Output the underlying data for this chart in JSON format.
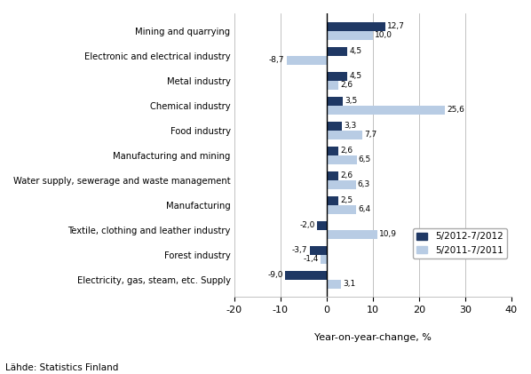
{
  "categories": [
    "Electricity, gas, steam, etc. Supply",
    "Forest industry",
    "Textile, clothing and leather industry",
    "Manufacturing",
    "Water supply, sewerage and waste management",
    "Manufacturing and mining",
    "Food industry",
    "Chemical industry",
    "Metal industry",
    "Electronic and electrical industry",
    "Mining and quarrying"
  ],
  "series_2012": [
    -9.0,
    -3.7,
    -2.0,
    2.5,
    2.6,
    2.6,
    3.3,
    3.5,
    4.5,
    4.5,
    12.7
  ],
  "series_2011": [
    3.1,
    -1.4,
    10.9,
    6.4,
    6.3,
    6.5,
    7.7,
    25.6,
    2.6,
    -8.7,
    10.0
  ],
  "color_2012": "#1F3864",
  "color_2011": "#B8CCE4",
  "xlim": [
    -20,
    40
  ],
  "xticks": [
    -20,
    -10,
    0,
    10,
    20,
    30,
    40
  ],
  "xlabel": "Year-on-year-change, %",
  "legend_2012": "5/2012-7/2012",
  "legend_2011": "5/2011-7/2011",
  "source": "Lähde: Statistics Finland",
  "bar_height": 0.36
}
